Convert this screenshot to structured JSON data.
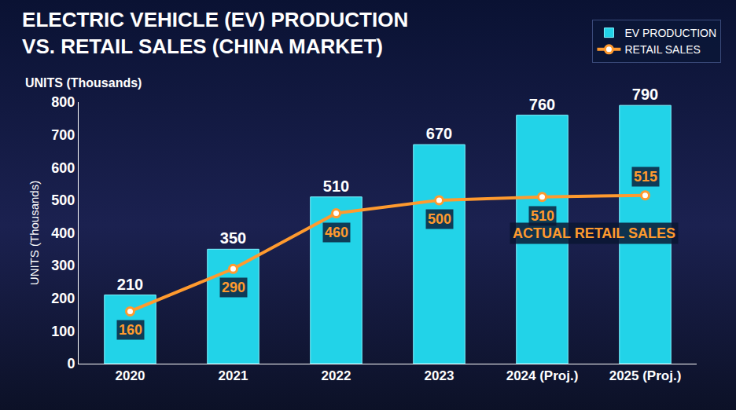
{
  "chart_data": {
    "type": "bar",
    "title": "ELECTRIC VEHICLE (EV) PRODUCTION VS. RETAIL SALES (CHINA MARKET)",
    "units_label": "UNITS (Thousands)",
    "ylabel": "UNITS (Thousands)",
    "categories": [
      "2020",
      "2021",
      "2022",
      "2023",
      "2024 (Proj.)",
      "2025 (Proj.)"
    ],
    "series": [
      {
        "name": "EV PRODUCTION",
        "type": "bar",
        "color": "#22d3e8",
        "values": [
          210,
          350,
          510,
          670,
          760,
          790
        ]
      },
      {
        "name": "RETAIL SALES",
        "type": "line",
        "color": "#ff9a2e",
        "marker": "circle",
        "values": [
          160,
          290,
          460,
          500,
          510,
          515
        ]
      }
    ],
    "ylim": [
      0,
      800
    ],
    "yticks": [
      0,
      100,
      200,
      300,
      400,
      500,
      600,
      700,
      800
    ],
    "grid": false,
    "legend": "top-right",
    "data_labels": true,
    "annotations": [
      {
        "text": "ACTUAL RETAIL SALES"
      }
    ]
  }
}
